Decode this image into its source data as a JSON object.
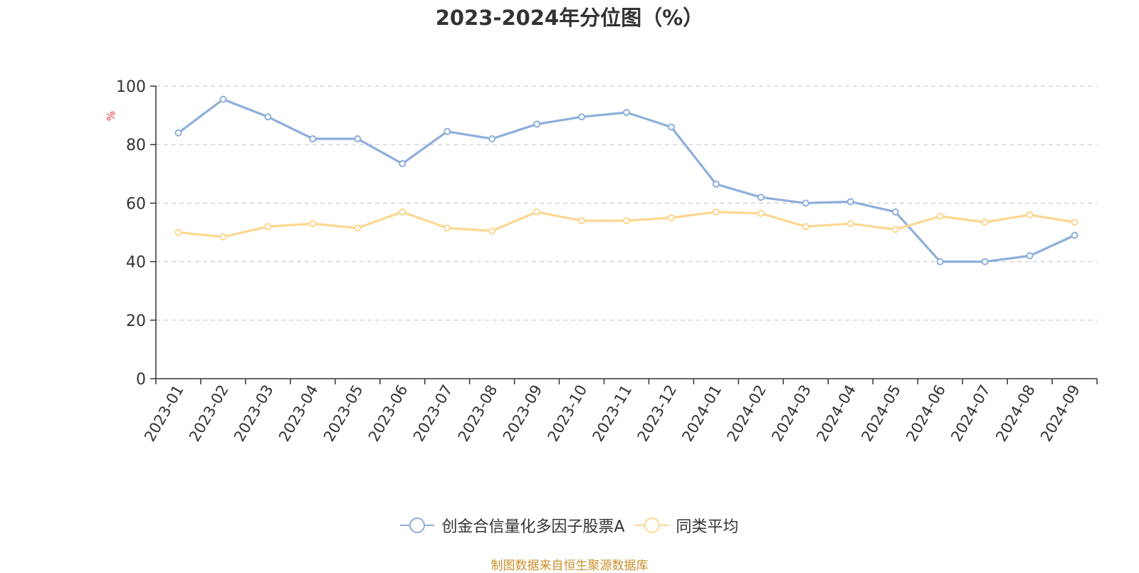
{
  "title": "2023-2024年分位图（%）",
  "source": "制图数据来自恒生聚源数据库",
  "colors": {
    "series1": "#8eaedb",
    "series2": "#fcd68f",
    "ylabel": "#e8332a",
    "axis": "#333333",
    "grid": "#cccccc"
  },
  "chart_data": {
    "type": "line",
    "ylabel": "%",
    "xlabel": "",
    "ylim": [
      0,
      100
    ],
    "yticks": [
      0,
      20,
      40,
      60,
      80,
      100
    ],
    "grid": true,
    "legend_position": "bottom",
    "categories": [
      "2023-01",
      "2023-02",
      "2023-03",
      "2023-04",
      "2023-05",
      "2023-06",
      "2023-07",
      "2023-08",
      "2023-09",
      "2023-10",
      "2023-11",
      "2023-12",
      "2024-01",
      "2024-02",
      "2024-03",
      "2024-04",
      "2024-05",
      "2024-06",
      "2024-07",
      "2024-08",
      "2024-09"
    ],
    "series": [
      {
        "name": "创金合信量化多因子股票A",
        "values": [
          84,
          95.5,
          89.5,
          82,
          82,
          73.5,
          84.5,
          82,
          87,
          89.5,
          91,
          86,
          66.5,
          62,
          60,
          60.5,
          57,
          40,
          40,
          42,
          49
        ]
      },
      {
        "name": "同类平均",
        "values": [
          50,
          48.5,
          52,
          53,
          51.5,
          57,
          51.5,
          50.5,
          57,
          54,
          54,
          55,
          57,
          56.5,
          52,
          53,
          51,
          55.5,
          53.5,
          56,
          53.5
        ]
      }
    ]
  }
}
